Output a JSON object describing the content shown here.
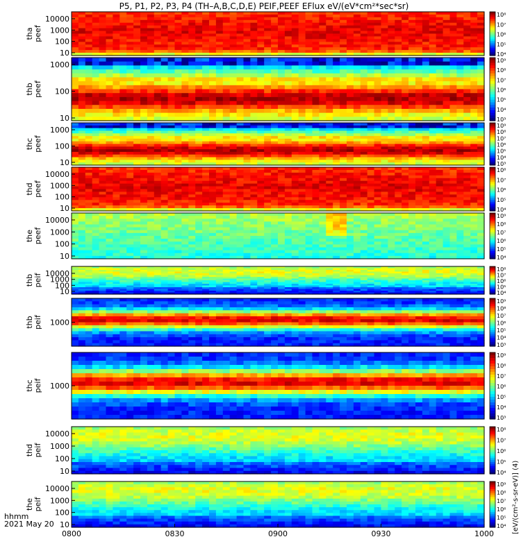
{
  "chart_data": {
    "type": "heatmap",
    "title": "P5, P1, P2, P3, P4 (TH–A,B,C,D,E) PEIF,PEEF EFlux eV/(eV*cm²*sec*sr)",
    "x_ticks": [
      "0800",
      "0830",
      "0900",
      "0930",
      "1000"
    ],
    "x_corner_label": [
      "hhmm",
      "2021 May 20"
    ],
    "colorbar_label": "[eV/(cm²-s-sr-eV)] (4)",
    "panels": [
      {
        "probe": "tha",
        "species": "peef",
        "y_ticks": [
          "10000",
          "1000",
          "100",
          "10"
        ],
        "cbar_ticks": [
          "10⁸",
          "10⁷",
          "10⁶",
          "10⁵",
          "10⁴"
        ],
        "profile": "electron_hot"
      },
      {
        "probe": "thb",
        "species": "peef",
        "y_ticks": [
          "1000",
          "100",
          "10"
        ],
        "cbar_ticks": [
          "10⁹",
          "10⁸",
          "10⁷",
          "10⁶",
          "10⁵",
          "10⁴",
          "10³"
        ],
        "profile": "electron_sw"
      },
      {
        "probe": "thc",
        "species": "peef",
        "y_ticks": [
          "1000",
          "100",
          "10"
        ],
        "cbar_ticks": [
          "10⁹",
          "10⁸",
          "10⁷",
          "10⁶",
          "10⁵",
          "10⁴",
          "10³"
        ],
        "profile": "electron_sw"
      },
      {
        "probe": "thd",
        "species": "peef",
        "y_ticks": [
          "10000",
          "1000",
          "100",
          "10"
        ],
        "cbar_ticks": [
          "10⁸",
          "10⁷",
          "10⁶",
          "10⁵",
          "10⁴"
        ],
        "profile": "electron_hot"
      },
      {
        "probe": "the",
        "species": "peef",
        "y_ticks": [
          "10000",
          "1000",
          "100",
          "10"
        ],
        "cbar_ticks": [
          "10⁹",
          "10⁸",
          "10⁷",
          "10⁶",
          "10⁵",
          "10⁴"
        ],
        "profile": "electron_cool"
      },
      {
        "probe": "thb",
        "species": "peif",
        "y_ticks": [
          "10000",
          "1000",
          "100",
          "10"
        ],
        "cbar_ticks": [
          "10⁸",
          "10⁷",
          "10⁶",
          "10⁵",
          "10⁴"
        ],
        "profile": "ion_cool"
      },
      {
        "probe": "thb",
        "species": "peif",
        "y_ticks": [
          "1000"
        ],
        "cbar_ticks": [
          "10⁹",
          "10⁸",
          "10⁷",
          "10⁶",
          "10⁵",
          "10⁴",
          "10³"
        ],
        "profile": "ion_sw"
      },
      {
        "probe": "thc",
        "species": "peif",
        "y_ticks": [
          "1000"
        ],
        "cbar_ticks": [
          "10⁹",
          "10⁸",
          "10⁷",
          "10⁶",
          "10⁵",
          "10⁴",
          "10³"
        ],
        "profile": "ion_sw"
      },
      {
        "probe": "thd",
        "species": "peif",
        "y_ticks": [
          "10000",
          "1000",
          "100",
          "10"
        ],
        "cbar_ticks": [
          "10⁸",
          "10⁷",
          "10⁶",
          "10⁵",
          "10⁴"
        ],
        "profile": "ion_cool"
      },
      {
        "probe": "the",
        "species": "peif",
        "y_ticks": [
          "10000",
          "1000",
          "100",
          "10"
        ],
        "cbar_ticks": [
          "10⁹",
          "10⁸",
          "10⁷",
          "10⁶",
          "10⁵",
          "10⁴"
        ],
        "profile": "ion_cool"
      }
    ]
  }
}
